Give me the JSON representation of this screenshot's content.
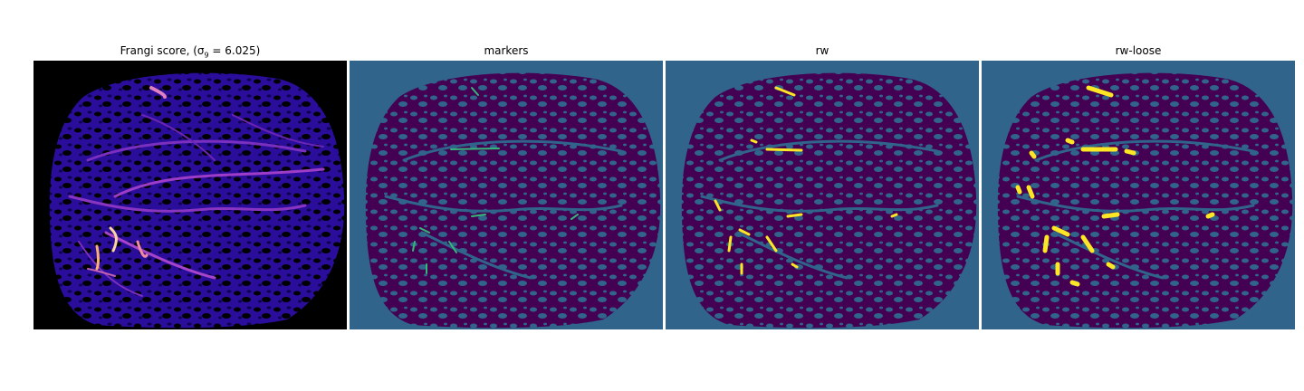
{
  "figure": {
    "panels": [
      {
        "key": "frangi",
        "title": "Frangi score, (σ",
        "title_sub": "9",
        "title_tail": " = 6.025)",
        "colormap": "magma"
      },
      {
        "key": "markers",
        "title": "markers",
        "colormap": "viridis"
      },
      {
        "key": "rw",
        "title": "rw",
        "colormap": "viridis"
      },
      {
        "key": "rwloose",
        "title": "rw-loose",
        "colormap": "viridis"
      }
    ],
    "colors": {
      "viridis_background": "#30648a",
      "viridis_dark": "#440154",
      "viridis_teal": "#35b779",
      "viridis_yellow": "#fde725",
      "magma_black": "#000000",
      "magma_blue": "#1a0c8c",
      "magma_purple": "#7b2fbf",
      "magma_bright": "#fcd5a0"
    }
  }
}
